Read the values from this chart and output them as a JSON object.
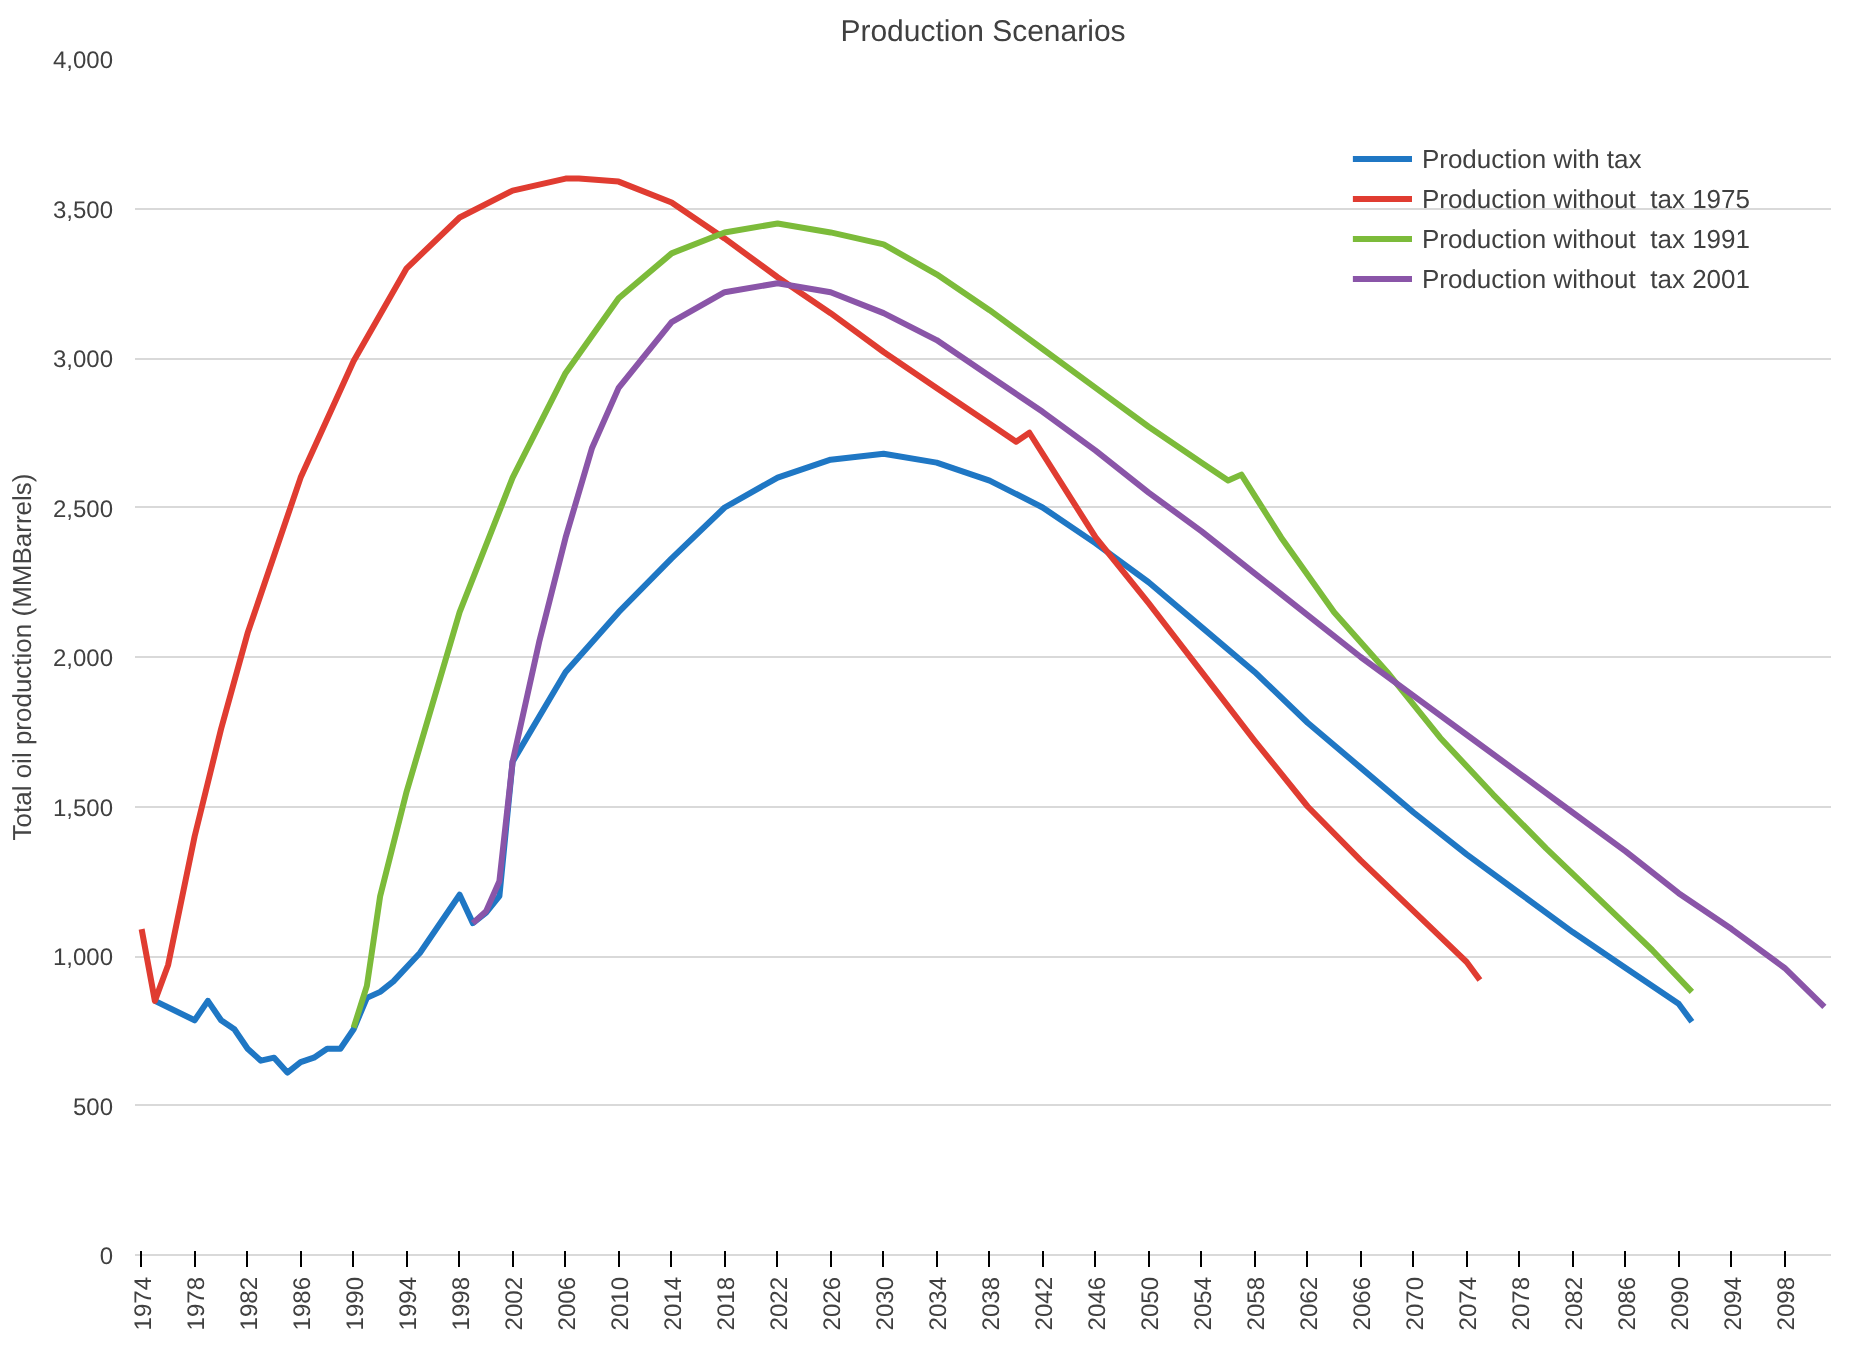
{
  "chart_data": {
    "type": "line",
    "title": "Production Scenarios",
    "ylabel": "Total oil production (MMBarrels)",
    "xlim": [
      1973.5,
      2101.5
    ],
    "xticks": [
      1974,
      1978,
      1982,
      1986,
      1990,
      1994,
      1998,
      2002,
      2006,
      2010,
      2014,
      2018,
      2022,
      2026,
      2030,
      2034,
      2038,
      2042,
      2046,
      2050,
      2054,
      2058,
      2062,
      2066,
      2070,
      2074,
      2078,
      2082,
      2086,
      2090,
      2094,
      2098
    ],
    "ylim": [
      0,
      4000
    ],
    "yticks": [
      0,
      500,
      {
        "value": 1000,
        "label": "1,000"
      },
      {
        "value": 1500,
        "label": "1,500"
      },
      {
        "value": 2000,
        "label": "2,000"
      },
      {
        "value": 2500,
        "label": "2,500"
      },
      {
        "value": 3000,
        "label": "3,000"
      },
      {
        "value": 3500,
        "label": "3,500"
      },
      {
        "value": 4000,
        "label": "4,000"
      }
    ],
    "grid": "y",
    "legend": "top right",
    "marker": "none",
    "line_style": "solid",
    "series": [
      {
        "name": "Production with tax",
        "color": "#1f77c4",
        "x": [
          1975,
          1978,
          1979,
          1980,
          1981,
          1982,
          1983,
          1984,
          1985,
          1986,
          1987,
          1988,
          1989,
          1990,
          1991,
          1992,
          1993,
          1995,
          1998,
          1999,
          2000,
          2001,
          2002,
          2006,
          2010,
          2014,
          2018,
          2022,
          2026,
          2030,
          2034,
          2038,
          2042,
          2046,
          2050,
          2054,
          2058,
          2062,
          2066,
          2070,
          2074,
          2078,
          2082,
          2086,
          2090,
          2091
        ],
        "values": [
          850,
          785,
          850,
          785,
          755,
          690,
          650,
          660,
          610,
          645,
          660,
          690,
          690,
          755,
          860,
          880,
          915,
          1010,
          1205,
          1110,
          1145,
          1200,
          1650,
          1950,
          2150,
          2330,
          2500,
          2600,
          2660,
          2680,
          2650,
          2590,
          2500,
          2380,
          2250,
          2100,
          1950,
          1780,
          1630,
          1480,
          1340,
          1210,
          1080,
          960,
          840,
          780
        ]
      },
      {
        "name": "Production without  tax 1975",
        "color": "#e03c31",
        "x": [
          1974,
          1975,
          1976,
          1978,
          1980,
          1982,
          1986,
          1990,
          1994,
          1998,
          2002,
          2006,
          2007,
          2010,
          2014,
          2018,
          2022,
          2026,
          2030,
          2034,
          2038,
          2040,
          2041,
          2046,
          2050,
          2054,
          2058,
          2062,
          2066,
          2070,
          2074,
          2075
        ],
        "values": [
          1090,
          850,
          970,
          1400,
          1760,
          2080,
          2600,
          2990,
          3300,
          3470,
          3560,
          3600,
          3600,
          3590,
          3520,
          3400,
          3270,
          3150,
          3020,
          2900,
          2780,
          2720,
          2750,
          2400,
          2180,
          1950,
          1720,
          1500,
          1320,
          1150,
          980,
          920
        ]
      },
      {
        "name": "Production without  tax 1991",
        "color": "#7cbb3a",
        "x": [
          1990,
          1991,
          1992,
          1994,
          1998,
          2002,
          2006,
          2010,
          2014,
          2018,
          2022,
          2026,
          2030,
          2034,
          2038,
          2042,
          2046,
          2050,
          2054,
          2056,
          2057,
          2060,
          2064,
          2068,
          2072,
          2076,
          2080,
          2084,
          2088,
          2091
        ],
        "values": [
          760,
          900,
          1200,
          1550,
          2150,
          2600,
          2950,
          3200,
          3350,
          3420,
          3450,
          3420,
          3380,
          3280,
          3160,
          3030,
          2900,
          2770,
          2650,
          2590,
          2610,
          2400,
          2150,
          1950,
          1730,
          1540,
          1360,
          1190,
          1020,
          880
        ]
      },
      {
        "name": "Production without  tax 2001",
        "color": "#8a55a8",
        "x": [
          1999,
          2000,
          2001,
          2002,
          2004,
          2006,
          2008,
          2010,
          2014,
          2018,
          2022,
          2026,
          2030,
          2034,
          2038,
          2042,
          2046,
          2050,
          2054,
          2058,
          2062,
          2066,
          2070,
          2074,
          2078,
          2082,
          2086,
          2090,
          2094,
          2098,
          2101
        ],
        "values": [
          1110,
          1150,
          1250,
          1650,
          2050,
          2400,
          2700,
          2900,
          3120,
          3220,
          3250,
          3220,
          3150,
          3060,
          2940,
          2820,
          2690,
          2550,
          2420,
          2280,
          2140,
          2000,
          1870,
          1740,
          1610,
          1480,
          1350,
          1210,
          1090,
          960,
          830
        ]
      }
    ]
  }
}
